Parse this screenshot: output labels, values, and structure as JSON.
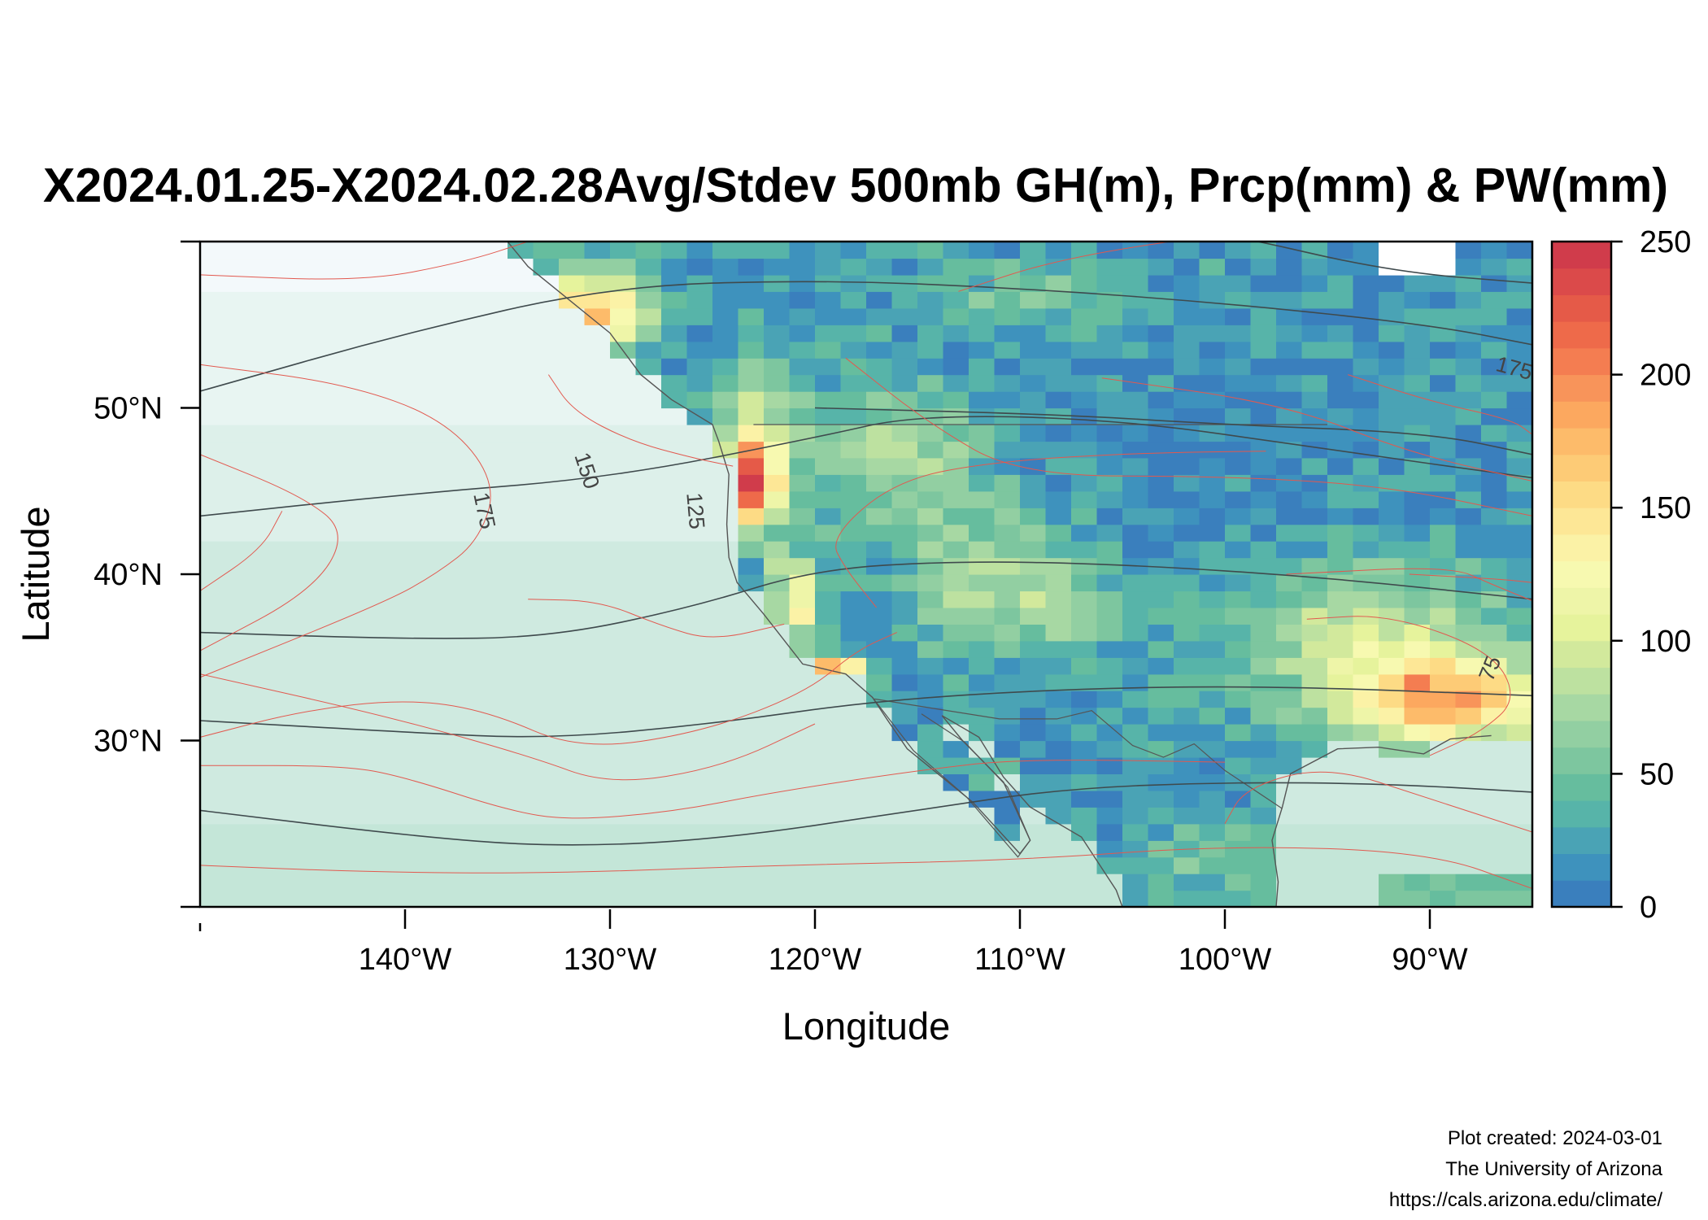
{
  "chart_data": {
    "type": "heatmap",
    "title": "X2024.01.25-X2024.02.28Avg/Stdev 500mb GH(m), Prcp(mm) & PW(mm)",
    "xlabel": "Longitude",
    "ylabel": "Latitude",
    "xlim": [
      -150,
      -85
    ],
    "ylim": [
      20,
      60
    ],
    "x_ticks": [
      {
        "value": -140,
        "label": "140°W"
      },
      {
        "value": -130,
        "label": "130°W"
      },
      {
        "value": -120,
        "label": "120°W"
      },
      {
        "value": -110,
        "label": "110°W"
      },
      {
        "value": -100,
        "label": "100°W"
      },
      {
        "value": -90,
        "label": "90°W"
      }
    ],
    "y_ticks": [
      {
        "value": 30,
        "label": "30°N"
      },
      {
        "value": 40,
        "label": "40°N"
      },
      {
        "value": 50,
        "label": "50°N"
      }
    ],
    "colorbar": {
      "min": 0,
      "max": 250,
      "step": 10,
      "ticks": [
        "0",
        "50",
        "100",
        "150",
        "200",
        "250"
      ],
      "colors": [
        "#3a7fbd",
        "#3e92bd",
        "#4aa3b5",
        "#57b4a9",
        "#66bd9e",
        "#7dc69f",
        "#92cfa2",
        "#a7d8a3",
        "#bde1a0",
        "#d2e99c",
        "#e6f39c",
        "#eef5a8",
        "#f7f9b0",
        "#fbf2a6",
        "#fde796",
        "#fddb85",
        "#fdcb76",
        "#fdbb6a",
        "#fca85f",
        "#f8945a",
        "#f47d51",
        "#ee6a4a",
        "#e55a48",
        "#db4a4a",
        "#d03c4b"
      ]
    },
    "contour_labels": [
      {
        "label": "175",
        "x": -136.2,
        "y": 43.8,
        "rot": 78
      },
      {
        "label": "150",
        "x": -131.2,
        "y": 46.2,
        "rot": 72
      },
      {
        "label": "125",
        "x": -125.9,
        "y": 43.8,
        "rot": 85
      },
      {
        "label": "175",
        "x": -85.9,
        "y": 52.3,
        "rot": 15
      },
      {
        "label": "75",
        "x": -87.0,
        "y": 34.3,
        "rot": -68
      }
    ]
  },
  "credits": {
    "line1": "Plot created: 2024-03-01",
    "line2": "The University of Arizona",
    "line3": "https://cals.arizona.edu/climate/"
  }
}
